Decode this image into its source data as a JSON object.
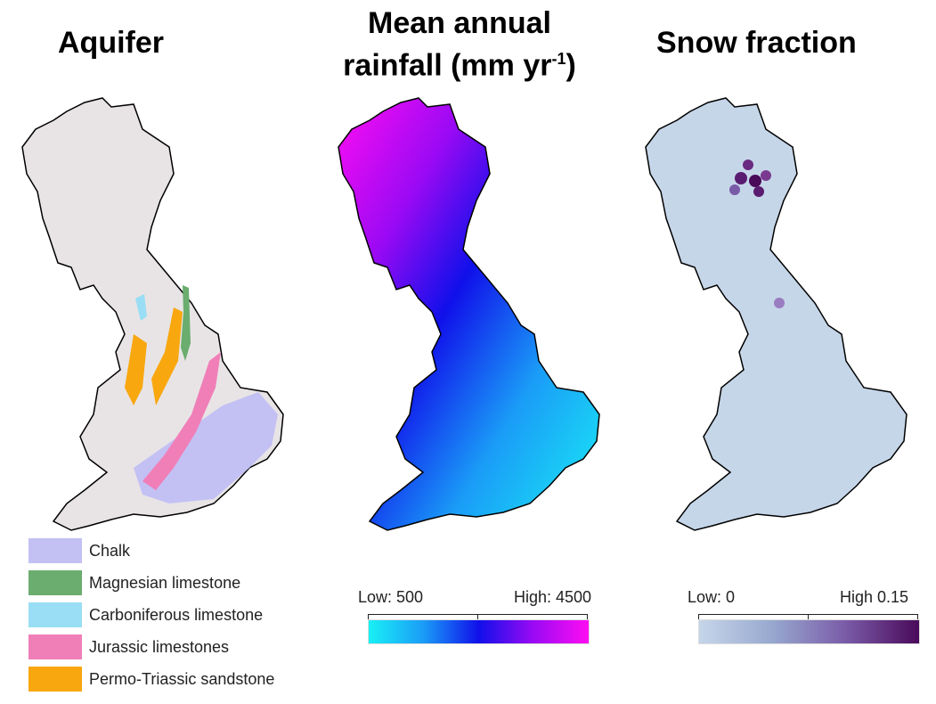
{
  "panels": {
    "aquifer": {
      "title": "Aquifer"
    },
    "rainfall": {
      "title_line1": "Mean annual",
      "title_line2": "rainfall (mm yr",
      "title_sup": "-1",
      "title_end": ")"
    },
    "snow": {
      "title": "Snow fraction"
    }
  },
  "aquifer_legend": [
    {
      "label": "Chalk",
      "color": "#c3c0f4"
    },
    {
      "label": "Magnesian limestone",
      "color": "#6aad6e"
    },
    {
      "label": "Carboniferous limestone",
      "color": "#99def4"
    },
    {
      "label": "Jurassic limestones",
      "color": "#f07fb8"
    },
    {
      "label": "Permo-Triassic sandstone",
      "color": "#f8a70f"
    }
  ],
  "rainfall_scale": {
    "low": "Low: 500",
    "high": "High: 4500",
    "colors": [
      "#19f0f5",
      "#1a9cf7",
      "#1010ea",
      "#9b09f4",
      "#ff0df2"
    ]
  },
  "snow_scale": {
    "low": "Low: 0",
    "high": "High 0.15",
    "colors": [
      "#c6d6e9",
      "#97a8cf",
      "#7a5ba8",
      "#4a0a5a"
    ]
  },
  "map_colors": {
    "land": "#e8e4e6",
    "coast": "#000000"
  }
}
